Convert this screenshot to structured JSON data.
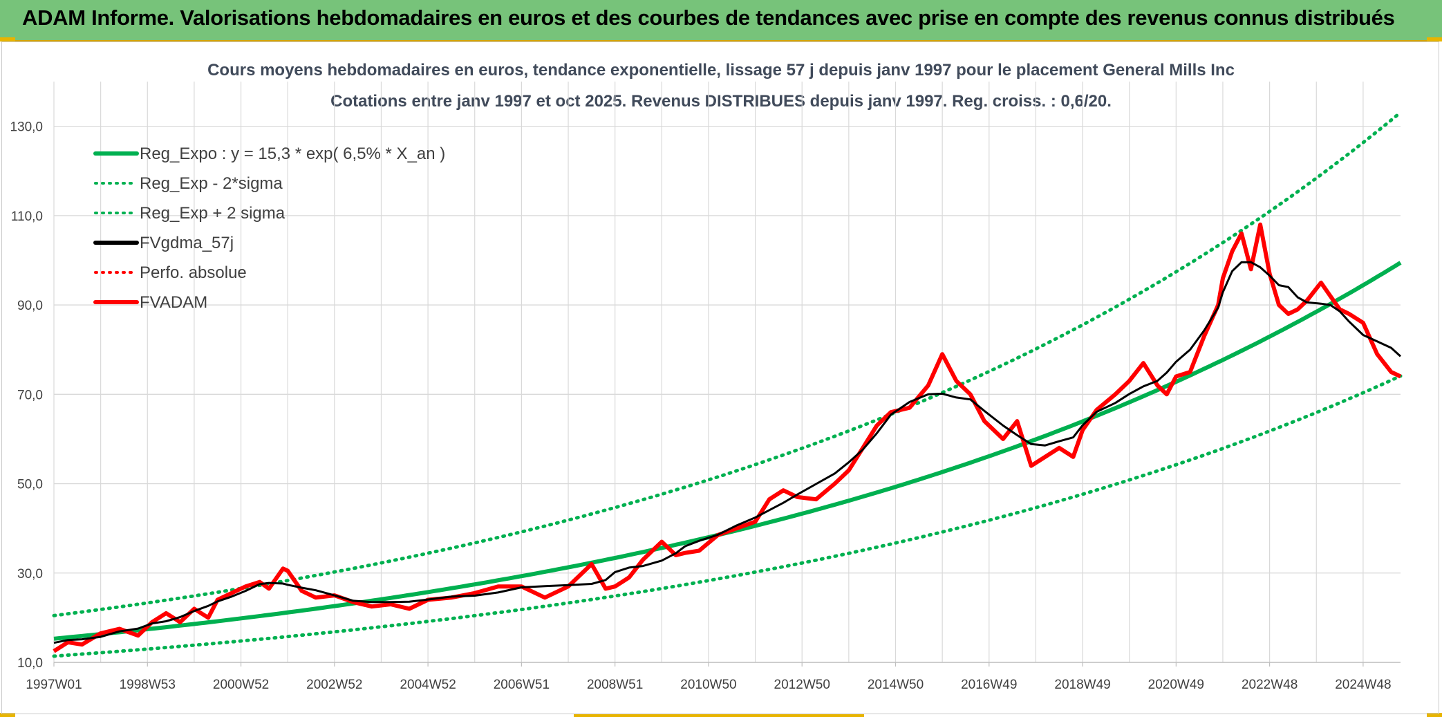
{
  "banner": {
    "title": "ADAM Informe. Valorisations hebdomadaires en euros et des courbes de tendances avec prise en compte des revenus connus distribués",
    "color": "#77c37a"
  },
  "chart_data": {
    "type": "line",
    "title_line1": "Cours moyens hebdomadaires en euros, tendance exponentielle, lissage 57 j depuis janv 1997 pour le placement General Mills Inc",
    "title_line2": "Cotations entre janv 1997 et oct 2025. Revenus DISTRIBUES depuis janv 1997. Reg. croiss. : 0,6/20.",
    "xlabel": "",
    "ylabel": "",
    "x_range": [
      1997.0,
      2025.8
    ],
    "ylim": [
      10,
      140
    ],
    "y_ticks": [
      "10,0",
      "30,0",
      "50,0",
      "70,0",
      "90,0",
      "110,0",
      "130,0"
    ],
    "y_tick_values": [
      10,
      30,
      50,
      70,
      90,
      110,
      130
    ],
    "x_tick_labels": [
      "1997W01",
      "1998W53",
      "2000W52",
      "2002W52",
      "2004W52",
      "2006W51",
      "2008W51",
      "2010W50",
      "2012W50",
      "2014W50",
      "2016W49",
      "2018W49",
      "2020W49",
      "2022W48",
      "2024W48"
    ],
    "grid": true,
    "legend_position": "top-left",
    "legend": [
      {
        "label": "Reg_Expo : y = 15,3 * exp( 6,5% *  X_an )",
        "color": "#00b050",
        "style": "solid"
      },
      {
        "label": "Reg_Exp - 2*sigma",
        "color": "#00b050",
        "style": "dotted"
      },
      {
        "label": "Reg_Exp + 2 sigma",
        "color": "#00b050",
        "style": "dotted"
      },
      {
        "label": "FVgdma_57j",
        "color": "#000000",
        "style": "solid"
      },
      {
        "label": "Perfo. absolue",
        "color": "#ff0000",
        "style": "dotted"
      },
      {
        "label": "FVADAM",
        "color": "#ff0000",
        "style": "solid"
      }
    ],
    "regression": {
      "a": 15.3,
      "rate": 0.065,
      "sigma_factor_low": 0.745,
      "sigma_factor_high": 1.338
    },
    "series_fvadam": {
      "name": "FVADAM",
      "x": [
        1997.0,
        1997.3,
        1997.6,
        1998.0,
        1998.4,
        1998.8,
        1999.1,
        1999.4,
        1999.7,
        2000.0,
        2000.3,
        2000.5,
        2000.8,
        2001.1,
        2001.4,
        2001.6,
        2001.9,
        2002.0,
        2002.3,
        2002.6,
        2003.0,
        2003.4,
        2003.8,
        2004.2,
        2004.6,
        2005.0,
        2005.5,
        2006.0,
        2006.5,
        2007.0,
        2007.5,
        2008.0,
        2008.5,
        2008.8,
        2009.0,
        2009.3,
        2009.6,
        2010.0,
        2010.3,
        2010.5,
        2010.8,
        2011.2,
        2011.6,
        2012.0,
        2012.3,
        2012.6,
        2012.9,
        2013.3,
        2013.7,
        2014.0,
        2014.3,
        2014.6,
        2014.9,
        2015.3,
        2015.7,
        2016.0,
        2016.3,
        2016.6,
        2016.9,
        2017.3,
        2017.6,
        2017.9,
        2018.2,
        2018.5,
        2018.8,
        2019.0,
        2019.3,
        2019.7,
        2020.0,
        2020.3,
        2020.6,
        2020.8,
        2021.0,
        2021.3,
        2021.6,
        2021.9,
        2022.0,
        2022.2,
        2022.4,
        2022.6,
        2022.8,
        2023.0,
        2023.2,
        2023.4,
        2023.6,
        2023.8,
        2024.1,
        2024.3,
        2024.5,
        2024.7,
        2025.0,
        2025.3,
        2025.6,
        2025.8
      ],
      "values": [
        12.5,
        14.5,
        14.0,
        16.5,
        17.5,
        16.0,
        19.0,
        21.0,
        19.0,
        22.0,
        20.0,
        24.0,
        25.5,
        27.0,
        28.0,
        26.5,
        31.0,
        30.5,
        26.0,
        24.5,
        25.0,
        23.5,
        22.5,
        23.0,
        22.0,
        24.0,
        24.5,
        25.5,
        27.0,
        27.0,
        24.5,
        27.0,
        32.0,
        26.5,
        27.0,
        29.0,
        33.0,
        37.0,
        34.0,
        34.5,
        35.0,
        38.5,
        40.0,
        41.5,
        46.5,
        48.5,
        47.0,
        46.5,
        50.0,
        53.0,
        58.0,
        63.0,
        66.0,
        67.0,
        72.0,
        79.0,
        73.0,
        70.0,
        64.0,
        60.0,
        64.0,
        54.0,
        56.0,
        58.0,
        56.0,
        62.0,
        66.5,
        70.0,
        73.0,
        77.0,
        72.0,
        70.0,
        74.0,
        75.0,
        83.0,
        90.0,
        96.0,
        102.0,
        106.0,
        98.0,
        108.0,
        97.0,
        90.0,
        88.0,
        89.0,
        91.0,
        95.0,
        92.0,
        89.0,
        88.0,
        86.0,
        79.0,
        75.0,
        74.0
      ]
    },
    "series_fvgdma_57j": {
      "name": "FVgdma_57j",
      "smoothing_window": 3
    }
  }
}
